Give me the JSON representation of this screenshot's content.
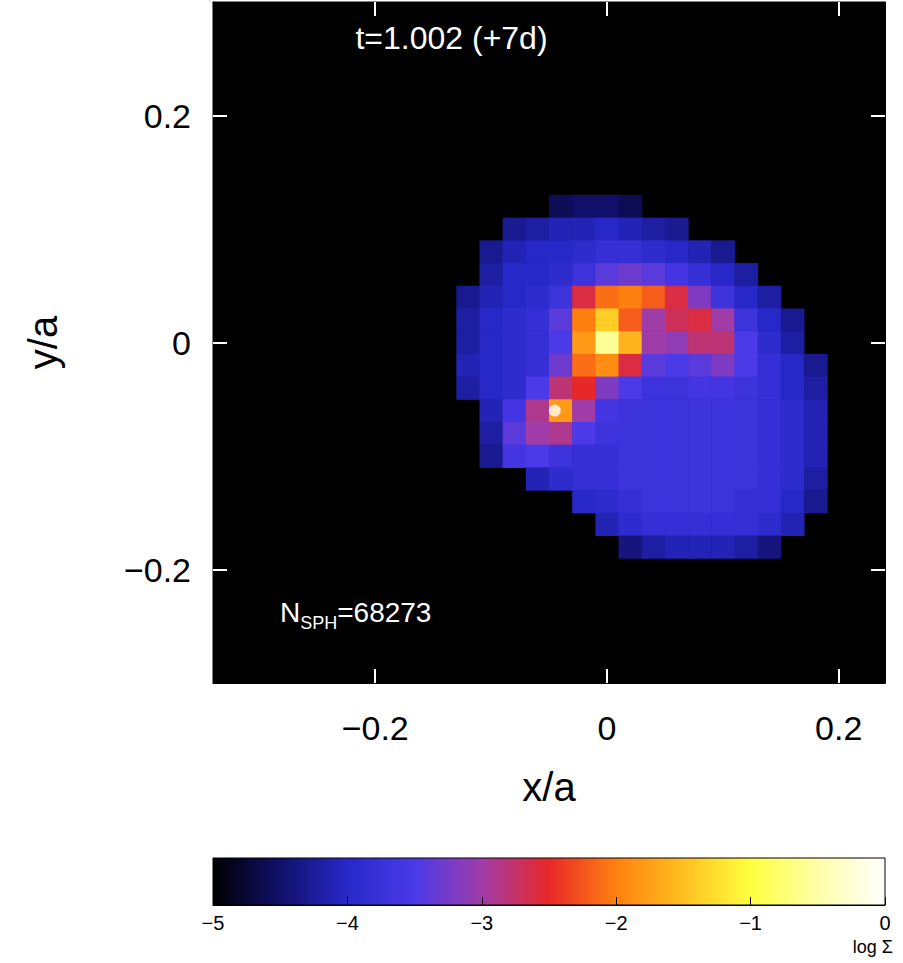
{
  "chart_data": {
    "type": "heatmap",
    "annotations": [
      {
        "text": "t=1.002 (+7d)"
      },
      {
        "text": "N",
        "subscript": "SPH",
        "suffix": "=68273"
      }
    ],
    "x_label": "x/a",
    "y_label": "y/a",
    "xlim": [
      -0.34,
      0.24
    ],
    "ylim": [
      -0.3,
      0.3
    ],
    "xticks": [
      {
        "value": -0.2,
        "label": "−0.2"
      },
      0,
      0.2
    ],
    "yticks": [
      {
        "value": -0.2,
        "label": "−0.2"
      },
      0,
      0.2
    ],
    "cells": {
      "x": [
        -0.12,
        -0.1,
        -0.08,
        -0.06,
        -0.04,
        -0.02,
        0,
        0.02,
        0.04,
        0.06,
        0.08,
        0.1,
        0.12,
        0.14,
        0.16,
        0.18
      ],
      "y": [
        0.12,
        0.1,
        0.08,
        0.06,
        0.04,
        0.02,
        0,
        -0.02,
        -0.04,
        -0.06,
        -0.08,
        -0.1,
        -0.12,
        -0.14,
        -0.16,
        -0.18
      ],
      "size": [
        0.02,
        0.02
      ],
      "values": [
        [
          null,
          null,
          null,
          null,
          -4.6,
          -4.5,
          -4.5,
          -4.6,
          null,
          null,
          null,
          null,
          null,
          null,
          null,
          null
        ],
        [
          null,
          null,
          -4.3,
          -4.2,
          -4.1,
          -4.1,
          -4.0,
          -4.1,
          -4.2,
          -4.3,
          null,
          null,
          null,
          null,
          null,
          null
        ],
        [
          null,
          -4.3,
          -4.1,
          -4.0,
          -4.0,
          -3.9,
          -3.8,
          -3.8,
          -3.9,
          -4.0,
          -4.1,
          -4.3,
          null,
          null,
          null,
          null
        ],
        [
          null,
          -4.2,
          -4.0,
          -4.0,
          -3.9,
          -3.7,
          -3.4,
          -3.3,
          -3.4,
          -3.6,
          -3.8,
          -4.0,
          -4.2,
          null,
          null,
          null
        ],
        [
          -4.3,
          -4.1,
          -4.0,
          -3.9,
          -3.7,
          -2.6,
          -2.1,
          -2.0,
          -2.2,
          -2.6,
          -3.2,
          -3.7,
          -4.0,
          -4.2,
          null,
          null
        ],
        [
          -4.2,
          -4.0,
          -3.9,
          -3.8,
          -3.4,
          -2.0,
          -1.4,
          -2.2,
          -3.0,
          -2.7,
          -2.6,
          -3.0,
          -3.7,
          -4.0,
          -4.3,
          null
        ],
        [
          -4.2,
          -4.0,
          -3.9,
          -3.8,
          -3.5,
          -1.8,
          -0.6,
          -1.6,
          -3.0,
          -3.1,
          -2.8,
          -2.8,
          -3.5,
          -3.9,
          -4.2,
          null
        ],
        [
          -4.1,
          -4.0,
          -3.9,
          -3.8,
          -3.3,
          -2.1,
          -1.9,
          -2.6,
          -3.4,
          -3.5,
          -3.4,
          -3.2,
          -3.5,
          -3.8,
          -4.0,
          -4.3
        ],
        [
          -4.2,
          -4.0,
          -3.9,
          -3.5,
          -2.8,
          -2.5,
          -3.2,
          -3.5,
          -3.7,
          -3.7,
          -3.6,
          -3.6,
          -3.7,
          -3.8,
          -4.0,
          -4.2
        ],
        [
          null,
          -4.1,
          -3.6,
          -2.9,
          -1.8,
          -3.0,
          -3.6,
          -3.7,
          -3.7,
          -3.7,
          -3.7,
          -3.7,
          -3.7,
          -3.8,
          -3.9,
          -4.1
        ],
        [
          null,
          -4.2,
          -3.4,
          -3.0,
          -2.9,
          -3.5,
          -3.7,
          -3.7,
          -3.7,
          -3.7,
          -3.7,
          -3.7,
          -3.7,
          -3.8,
          -3.9,
          -4.1
        ],
        [
          null,
          -4.3,
          -3.6,
          -3.5,
          -3.7,
          -3.8,
          -3.8,
          -3.7,
          -3.7,
          -3.7,
          -3.7,
          -3.7,
          -3.7,
          -3.8,
          -3.9,
          -4.1
        ],
        [
          null,
          null,
          null,
          -4.1,
          -3.9,
          -3.8,
          -3.8,
          -3.7,
          -3.7,
          -3.7,
          -3.7,
          -3.7,
          -3.7,
          -3.8,
          -3.9,
          -4.2
        ],
        [
          null,
          null,
          null,
          null,
          null,
          -4.0,
          -3.9,
          -3.8,
          -3.7,
          -3.7,
          -3.7,
          -3.7,
          -3.8,
          -3.8,
          -4.0,
          -4.3
        ],
        [
          null,
          null,
          null,
          null,
          null,
          null,
          -4.1,
          -3.9,
          -3.8,
          -3.8,
          -3.8,
          -3.8,
          -3.8,
          -3.9,
          -4.1,
          null
        ],
        [
          null,
          null,
          null,
          null,
          null,
          null,
          null,
          -4.4,
          -4.2,
          -4.1,
          -4.1,
          -4.1,
          -4.2,
          -4.4,
          null,
          null
        ]
      ]
    },
    "points": {
      "x": [
        -0.045
      ],
      "y": [
        -0.06
      ],
      "color": "#ffffff"
    },
    "colorbar": {
      "range": [
        -5,
        0
      ],
      "ticks": [
        {
          "value": -5,
          "label": "−5"
        },
        {
          "value": -4,
          "label": "−4"
        },
        {
          "value": -3,
          "label": "−3"
        },
        {
          "value": -2,
          "label": "−2"
        },
        {
          "value": -1,
          "label": "−1"
        },
        0
      ],
      "label": "log Σ"
    }
  }
}
